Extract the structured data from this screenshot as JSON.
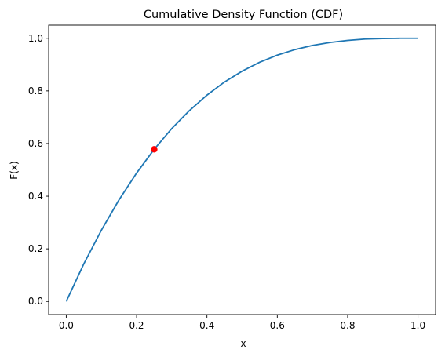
{
  "chart_data": {
    "type": "line",
    "title": "Cumulative Density Function (CDF)",
    "xlabel": "x",
    "ylabel": "F(x)",
    "xlim": [
      -0.05,
      1.05
    ],
    "ylim": [
      -0.05,
      1.05
    ],
    "xticks": [
      0.0,
      0.2,
      0.4,
      0.6,
      0.8,
      1.0
    ],
    "xtick_labels": [
      "0.0",
      "0.2",
      "0.4",
      "0.6",
      "0.8",
      "1.0"
    ],
    "yticks": [
      0.0,
      0.2,
      0.4,
      0.6,
      0.8,
      1.0
    ],
    "ytick_labels": [
      "0.0",
      "0.2",
      "0.4",
      "0.6",
      "0.8",
      "1.0"
    ],
    "grid": false,
    "series": [
      {
        "color": "#1f77b4",
        "x": [
          0.0,
          0.05,
          0.1,
          0.15,
          0.2,
          0.25,
          0.3,
          0.35,
          0.4,
          0.45,
          0.5,
          0.55,
          0.6,
          0.65,
          0.7,
          0.75,
          0.8,
          0.85,
          0.9,
          0.95,
          1.0
        ],
        "y": [
          0.0,
          0.143,
          0.271,
          0.386,
          0.488,
          0.578,
          0.657,
          0.725,
          0.784,
          0.834,
          0.875,
          0.909,
          0.936,
          0.957,
          0.973,
          0.984,
          0.992,
          0.997,
          0.999,
          1.0,
          1.0
        ]
      }
    ],
    "highlight_points": [
      {
        "x": 0.25,
        "y": 0.578,
        "color": "#ff0000"
      }
    ]
  }
}
